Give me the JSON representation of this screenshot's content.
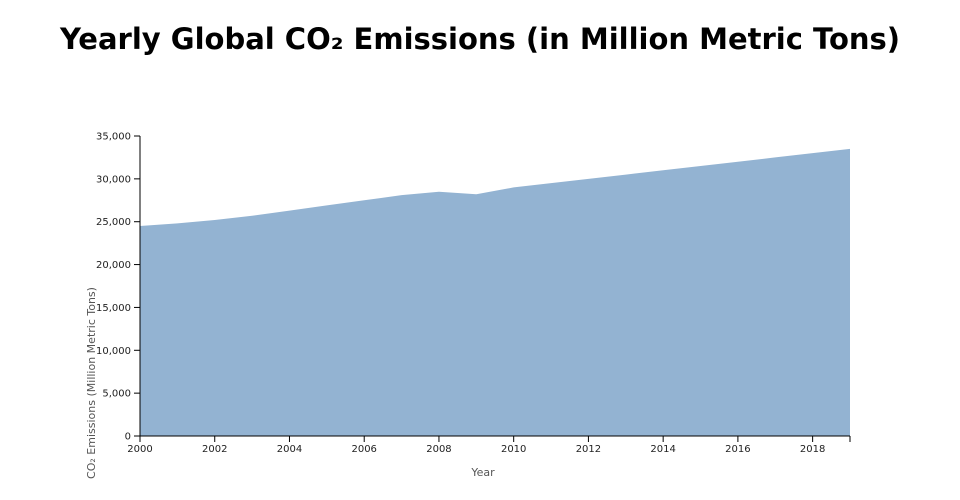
{
  "chart_data": {
    "type": "area",
    "title": "Yearly Global CO₂ Emissions (in Million Metric Tons)",
    "xlabel": "Year",
    "ylabel": "CO₂ Emissions (Million Metric Tons)",
    "x": [
      2000,
      2001,
      2002,
      2003,
      2004,
      2005,
      2006,
      2007,
      2008,
      2009,
      2010,
      2011,
      2012,
      2013,
      2014,
      2015,
      2016,
      2017,
      2018,
      2019
    ],
    "values": [
      24500,
      24800,
      25200,
      25700,
      26300,
      26900,
      27500,
      28100,
      28500,
      28200,
      29000,
      29500,
      30000,
      30500,
      31000,
      31500,
      32000,
      32500,
      33000,
      33500
    ],
    "xlim": [
      2000,
      2019
    ],
    "ylim": [
      0,
      35000
    ],
    "yticks": [
      "0",
      "5,000",
      "10,000",
      "15,000",
      "20,000",
      "25,000",
      "30,000",
      "35,000"
    ],
    "xticks": [
      "2000",
      "2002",
      "2004",
      "2006",
      "2008",
      "2010",
      "2012",
      "2014",
      "2016",
      "2018"
    ],
    "fill_color": "#93b3d2",
    "grid": false,
    "legend": false
  }
}
